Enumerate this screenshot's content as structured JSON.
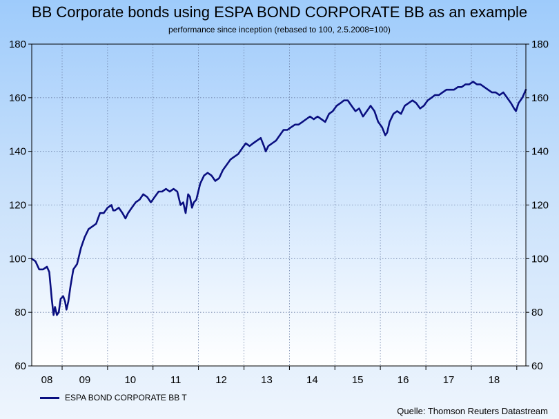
{
  "title": "BB Corporate bonds using ESPA BOND CORPORATE BB as an example",
  "subtitle": "performance since inception (rebased to 100, 2.5.2008=100)",
  "source": "Quelle: Thomson Reuters Datastream",
  "colors": {
    "line": "#0a0f80",
    "grid": "#6b7fa6",
    "frame": "#000000"
  },
  "chart_data": {
    "type": "line",
    "title": "BB Corporate bonds using ESPA BOND CORPORATE BB as an example",
    "subtitle": "performance since inception (rebased to 100, 2.5.2008=100)",
    "xlabel": "",
    "ylabel": "",
    "ylim": [
      60,
      180
    ],
    "yticks": [
      60,
      80,
      100,
      120,
      140,
      160,
      180
    ],
    "y_axis_sides": "left and right",
    "xlim": [
      "2008-05-02",
      "2019-03-15"
    ],
    "x_tick_labels": [
      "08",
      "09",
      "10",
      "11",
      "12",
      "13",
      "14",
      "15",
      "16",
      "17",
      "18"
    ],
    "grid": true,
    "legend_position": "bottom-left",
    "series": [
      {
        "name": "ESPA BOND CORPORATE BB T",
        "points": [
          [
            "2008-05-02",
            100
          ],
          [
            "2008-06-01",
            99
          ],
          [
            "2008-07-01",
            96
          ],
          [
            "2008-08-01",
            96
          ],
          [
            "2008-09-01",
            97
          ],
          [
            "2008-09-20",
            95
          ],
          [
            "2008-10-10",
            85
          ],
          [
            "2008-10-24",
            79
          ],
          [
            "2008-11-05",
            82
          ],
          [
            "2008-11-20",
            79
          ],
          [
            "2008-12-05",
            80
          ],
          [
            "2008-12-20",
            85
          ],
          [
            "2009-01-10",
            86
          ],
          [
            "2009-01-25",
            84
          ],
          [
            "2009-02-05",
            81
          ],
          [
            "2009-02-20",
            84
          ],
          [
            "2009-03-10",
            90
          ],
          [
            "2009-04-01",
            96
          ],
          [
            "2009-05-01",
            98
          ],
          [
            "2009-06-01",
            104
          ],
          [
            "2009-07-01",
            108
          ],
          [
            "2009-08-01",
            111
          ],
          [
            "2009-09-01",
            112
          ],
          [
            "2009-10-01",
            113
          ],
          [
            "2009-11-01",
            117
          ],
          [
            "2009-12-01",
            117
          ],
          [
            "2010-01-01",
            119
          ],
          [
            "2010-02-01",
            120
          ],
          [
            "2010-02-15",
            118
          ],
          [
            "2010-03-01",
            118
          ],
          [
            "2010-04-01",
            119
          ],
          [
            "2010-05-01",
            117
          ],
          [
            "2010-05-25",
            115
          ],
          [
            "2010-06-15",
            117
          ],
          [
            "2010-07-15",
            119
          ],
          [
            "2010-08-15",
            121
          ],
          [
            "2010-09-15",
            122
          ],
          [
            "2010-10-15",
            124
          ],
          [
            "2010-11-15",
            123
          ],
          [
            "2010-12-15",
            121
          ],
          [
            "2011-01-15",
            123
          ],
          [
            "2011-02-15",
            125
          ],
          [
            "2011-03-15",
            125
          ],
          [
            "2011-04-15",
            126
          ],
          [
            "2011-05-15",
            125
          ],
          [
            "2011-06-15",
            126
          ],
          [
            "2011-07-15",
            125
          ],
          [
            "2011-08-10",
            120
          ],
          [
            "2011-09-01",
            121
          ],
          [
            "2011-09-20",
            117
          ],
          [
            "2011-10-10",
            124
          ],
          [
            "2011-10-25",
            123
          ],
          [
            "2011-11-10",
            119
          ],
          [
            "2011-11-25",
            121
          ],
          [
            "2011-12-15",
            122
          ],
          [
            "2012-01-15",
            128
          ],
          [
            "2012-02-15",
            131
          ],
          [
            "2012-03-15",
            132
          ],
          [
            "2012-04-15",
            131
          ],
          [
            "2012-05-15",
            129
          ],
          [
            "2012-06-15",
            130
          ],
          [
            "2012-07-15",
            133
          ],
          [
            "2012-08-15",
            135
          ],
          [
            "2012-09-15",
            137
          ],
          [
            "2012-10-15",
            138
          ],
          [
            "2012-11-15",
            139
          ],
          [
            "2012-12-15",
            141
          ],
          [
            "2013-01-15",
            143
          ],
          [
            "2013-02-15",
            142
          ],
          [
            "2013-03-15",
            143
          ],
          [
            "2013-04-15",
            144
          ],
          [
            "2013-05-15",
            145
          ],
          [
            "2013-06-10",
            142
          ],
          [
            "2013-06-25",
            140
          ],
          [
            "2013-07-15",
            142
          ],
          [
            "2013-08-15",
            143
          ],
          [
            "2013-09-15",
            144
          ],
          [
            "2013-10-15",
            146
          ],
          [
            "2013-11-15",
            148
          ],
          [
            "2013-12-15",
            148
          ],
          [
            "2014-01-15",
            149
          ],
          [
            "2014-02-15",
            150
          ],
          [
            "2014-03-15",
            150
          ],
          [
            "2014-04-15",
            151
          ],
          [
            "2014-05-15",
            152
          ],
          [
            "2014-06-15",
            153
          ],
          [
            "2014-07-15",
            152
          ],
          [
            "2014-08-15",
            153
          ],
          [
            "2014-09-15",
            152
          ],
          [
            "2014-10-15",
            151
          ],
          [
            "2014-11-15",
            154
          ],
          [
            "2014-12-15",
            155
          ],
          [
            "2015-01-15",
            157
          ],
          [
            "2015-02-15",
            158
          ],
          [
            "2015-03-15",
            159
          ],
          [
            "2015-04-15",
            159
          ],
          [
            "2015-05-15",
            157
          ],
          [
            "2015-06-15",
            155
          ],
          [
            "2015-07-15",
            156
          ],
          [
            "2015-08-15",
            153
          ],
          [
            "2015-09-15",
            155
          ],
          [
            "2015-10-15",
            157
          ],
          [
            "2015-11-15",
            155
          ],
          [
            "2015-12-15",
            151
          ],
          [
            "2016-01-15",
            149
          ],
          [
            "2016-02-10",
            146
          ],
          [
            "2016-02-25",
            147
          ],
          [
            "2016-03-15",
            151
          ],
          [
            "2016-04-15",
            154
          ],
          [
            "2016-05-15",
            155
          ],
          [
            "2016-06-15",
            154
          ],
          [
            "2016-07-15",
            157
          ],
          [
            "2016-08-15",
            158
          ],
          [
            "2016-09-15",
            159
          ],
          [
            "2016-10-15",
            158
          ],
          [
            "2016-11-15",
            156
          ],
          [
            "2016-12-15",
            157
          ],
          [
            "2017-01-15",
            159
          ],
          [
            "2017-02-15",
            160
          ],
          [
            "2017-03-15",
            161
          ],
          [
            "2017-04-15",
            161
          ],
          [
            "2017-05-15",
            162
          ],
          [
            "2017-06-15",
            163
          ],
          [
            "2017-07-15",
            163
          ],
          [
            "2017-08-15",
            163
          ],
          [
            "2017-09-15",
            164
          ],
          [
            "2017-10-15",
            164
          ],
          [
            "2017-11-15",
            165
          ],
          [
            "2017-12-15",
            165
          ],
          [
            "2018-01-15",
            166
          ],
          [
            "2018-02-15",
            165
          ],
          [
            "2018-03-15",
            165
          ],
          [
            "2018-04-15",
            164
          ],
          [
            "2018-05-15",
            163
          ],
          [
            "2018-06-15",
            162
          ],
          [
            "2018-07-15",
            162
          ],
          [
            "2018-08-15",
            161
          ],
          [
            "2018-09-15",
            162
          ],
          [
            "2018-10-15",
            160
          ],
          [
            "2018-11-15",
            158
          ],
          [
            "2018-12-10",
            156
          ],
          [
            "2018-12-25",
            155
          ],
          [
            "2019-01-15",
            158
          ],
          [
            "2019-02-15",
            160
          ],
          [
            "2019-03-15",
            163
          ]
        ]
      }
    ]
  }
}
